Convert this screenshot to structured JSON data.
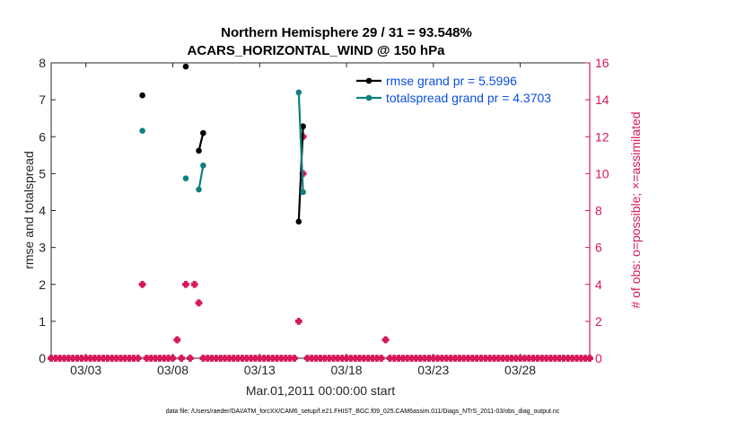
{
  "chart_data": {
    "type": "line",
    "title_line1": "Northern Hemisphere 29 / 31 = 93.548%",
    "title_line2": "ACARS_HORIZONTAL_WIND @ 150 hPa",
    "ylabel": "rmse and totalspread",
    "ylabel_right": "# of obs: o=possible; ×=assimilated",
    "xlabel": "Mar.01,2011 00:00:00 start",
    "footnote": "data file: /Users/raeder/DAI/ATM_forcXX/CAM6_setup/f.e21.FHIST_BGC.f09_025.CAM6assim.011/Diags_NTrS_2011-03/obs_diag_output.nc",
    "xlim": [
      1,
      32
    ],
    "ylim": [
      0,
      8
    ],
    "ylim_right": [
      0,
      16
    ],
    "xticks": [
      {
        "x": 3,
        "label": "03/03"
      },
      {
        "x": 8,
        "label": "03/08"
      },
      {
        "x": 13,
        "label": "03/13"
      },
      {
        "x": 18,
        "label": "03/18"
      },
      {
        "x": 23,
        "label": "03/23"
      },
      {
        "x": 28,
        "label": "03/28"
      }
    ],
    "yticks": [
      0,
      1,
      2,
      3,
      4,
      5,
      6,
      7,
      8
    ],
    "yticks_right": [
      0,
      2,
      4,
      6,
      8,
      10,
      12,
      14,
      16
    ],
    "legend_position": "top-right",
    "series": [
      {
        "name": "rmse grand pr = 5.5996",
        "color": "#000000",
        "segments": [
          [
            [
              6.25,
              7.12
            ]
          ],
          [
            [
              8.75,
              7.9
            ]
          ],
          [
            [
              9.5,
              5.62
            ],
            [
              9.75,
              6.1
            ]
          ],
          [
            [
              15.25,
              3.7
            ],
            [
              15.5,
              6.28
            ]
          ]
        ]
      },
      {
        "name": "totalspread grand pr = 4.3703",
        "color": "#0e8080",
        "segments": [
          [
            [
              6.25,
              6.16
            ]
          ],
          [
            [
              8.75,
              4.87
            ]
          ],
          [
            [
              9.5,
              4.57
            ],
            [
              9.75,
              5.22
            ]
          ],
          [
            [
              15.25,
              7.2
            ],
            [
              15.5,
              4.5
            ]
          ]
        ]
      }
    ],
    "obs_color": "#d6185a",
    "obs_assimilated": [
      {
        "x": 6.25,
        "count": 4
      },
      {
        "x": 8.25,
        "count": 1
      },
      {
        "x": 8.75,
        "count": 4
      },
      {
        "x": 9.25,
        "count": 4
      },
      {
        "x": 9.5,
        "count": 3
      },
      {
        "x": 15.25,
        "count": 2
      },
      {
        "x": 15.5,
        "count": 10
      },
      {
        "x": 15.5,
        "count": 12
      },
      {
        "x": 20.25,
        "count": 1
      }
    ],
    "obs_zero_step": 0.25
  }
}
